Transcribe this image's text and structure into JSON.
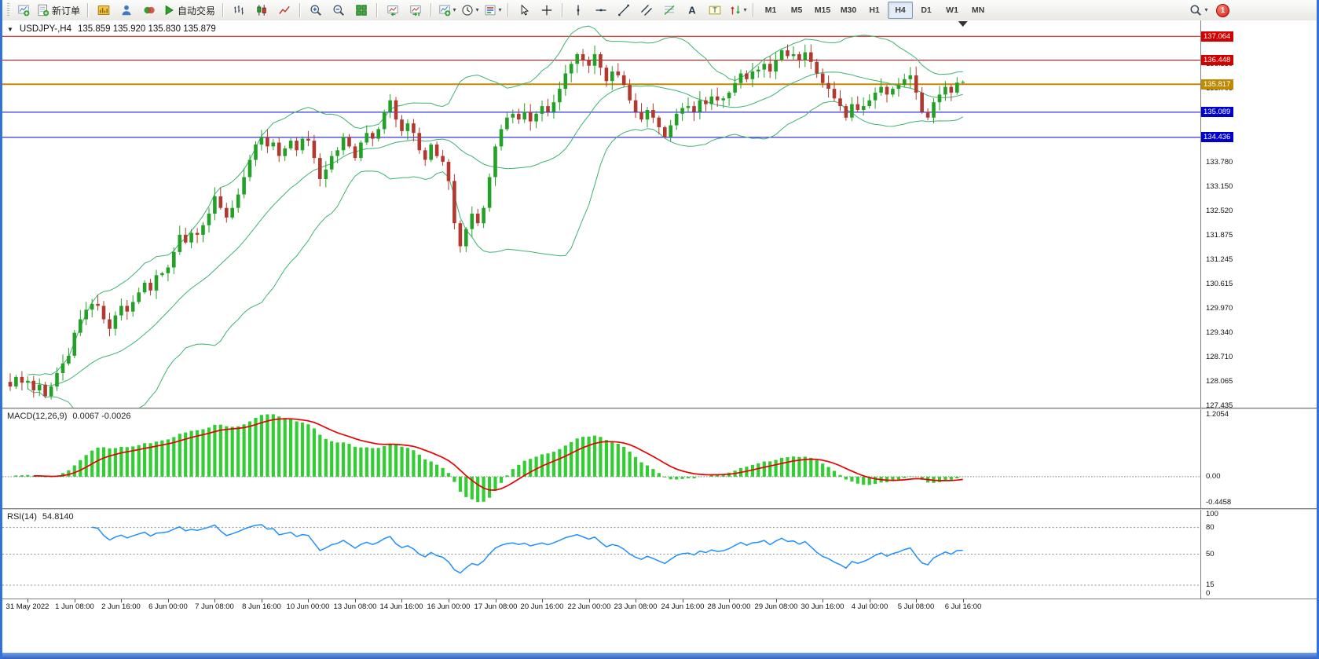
{
  "toolbar": {
    "groups": [
      {
        "items": [
          {
            "name": "new-chart",
            "icon": "indicators"
          },
          {
            "name": "new-order",
            "icon": "order-ticket",
            "label": "新订单"
          }
        ]
      },
      {
        "items": [
          {
            "name": "market-watch",
            "icon": "market-watch"
          },
          {
            "name": "data-window",
            "icon": "data-window"
          },
          {
            "name": "terminal",
            "icon": "terminal"
          },
          {
            "name": "autotrading",
            "icon": "play",
            "label": "自动交易"
          }
        ]
      },
      {
        "items": [
          {
            "name": "bar-chart-mode",
            "icon": "bar-chart"
          },
          {
            "name": "candlestick-mode",
            "icon": "candle-chart"
          },
          {
            "name": "line-chart-mode",
            "icon": "line-chart"
          }
        ]
      },
      {
        "items": [
          {
            "name": "zoom-in",
            "icon": "zoom-in"
          },
          {
            "name": "zoom-out",
            "icon": "zoom-out"
          },
          {
            "name": "tile-windows",
            "icon": "tile-windows"
          }
        ]
      },
      {
        "items": [
          {
            "name": "auto-scroll",
            "icon": "auto-scroll"
          },
          {
            "name": "chart-shift",
            "icon": "chart-shift"
          }
        ]
      },
      {
        "items": [
          {
            "name": "indicators-list",
            "icon": "indicators",
            "dropdown": true
          },
          {
            "name": "periods",
            "icon": "clock",
            "dropdown": true
          },
          {
            "name": "templates",
            "icon": "templates",
            "dropdown": true
          }
        ]
      },
      {
        "items": [
          {
            "name": "cursor",
            "icon": "cursor"
          },
          {
            "name": "crosshair",
            "icon": "crosshair"
          }
        ]
      },
      {
        "items": [
          {
            "name": "vertical-line",
            "icon": "vline"
          },
          {
            "name": "horizontal-line",
            "icon": "hline"
          },
          {
            "name": "trendline",
            "icon": "trendline"
          },
          {
            "name": "equidistant-channel",
            "icon": "channel"
          },
          {
            "name": "fibonacci",
            "icon": "fibonacci"
          },
          {
            "name": "text",
            "icon": "text"
          },
          {
            "name": "text-label",
            "icon": "text-label"
          },
          {
            "name": "arrows",
            "icon": "arrows",
            "dropdown": true
          }
        ]
      }
    ],
    "timeframes": [
      "M1",
      "M5",
      "M15",
      "M30",
      "H1",
      "H4",
      "D1",
      "W1",
      "MN"
    ],
    "active_timeframe": "H4",
    "notification_count": "1"
  },
  "main_chart": {
    "symbol_period": "USDJPY-,H4",
    "ohlc_text": "135.859 135.920 135.830 135.879",
    "axis_ticks": [
      {
        "price": 136.96,
        "text": "136.960"
      },
      {
        "price": 136.33,
        "text": "136.330"
      },
      {
        "price": 135.705,
        "text": "135.705"
      },
      {
        "price": 133.78,
        "text": "133.780"
      },
      {
        "price": 133.15,
        "text": "133.150"
      },
      {
        "price": 132.52,
        "text": "132.520"
      },
      {
        "price": 131.875,
        "text": "131.875"
      },
      {
        "price": 131.245,
        "text": "131.245"
      },
      {
        "price": 130.615,
        "text": "130.615"
      },
      {
        "price": 129.97,
        "text": "129.970"
      },
      {
        "price": 129.34,
        "text": "129.340"
      },
      {
        "price": 128.71,
        "text": "128.710"
      },
      {
        "price": 128.065,
        "text": "128.065"
      },
      {
        "price": 127.435,
        "text": "127.435"
      }
    ],
    "levels": [
      {
        "price": 137.064,
        "text": "137.064",
        "color": "#d40000",
        "width": 1
      },
      {
        "price": 136.448,
        "text": "136.448",
        "color": "#d40000",
        "width": 1
      },
      {
        "price": 135.817,
        "text": "135.817",
        "color": "#bf8a00",
        "width": 2
      },
      {
        "price": 135.089,
        "text": "135.089",
        "color": "#0000cd",
        "width": 1
      },
      {
        "price": 134.436,
        "text": "134.436",
        "color": "#0000cd",
        "width": 1
      }
    ]
  },
  "macd": {
    "label": "MACD(12,26,9)",
    "values_text": "0.0067 -0.0026",
    "axis_top": "1.2054",
    "axis_zero": "0.00",
    "axis_bottom": "-0.4458",
    "histogram_color": "#32cd32",
    "signal_color": "#e80000",
    "params": {
      "fast": 12,
      "slow": 26,
      "signal": 9
    }
  },
  "rsi": {
    "label": "RSI(14)",
    "value_text": "54.8140",
    "period": 14,
    "line_color": "#1e90ff",
    "levels": [
      80,
      50,
      15
    ],
    "axis_labels": [
      {
        "value": 100,
        "text": "100"
      },
      {
        "value": 80,
        "text": "80"
      },
      {
        "value": 50,
        "text": "50"
      },
      {
        "value": 15,
        "text": "15"
      },
      {
        "value": 0,
        "text": "0"
      }
    ]
  },
  "time_axis": {
    "first_label_bar": 3,
    "label_every_bars": 8,
    "labels": [
      "31 May 2022",
      "1 Jun 08:00",
      "2 Jun 16:00",
      "6 Jun 00:00",
      "7 Jun 08:00",
      "8 Jun 16:00",
      "10 Jun 00:00",
      "13 Jun 08:00",
      "14 Jun 16:00",
      "16 Jun 00:00",
      "17 Jun 08:00",
      "20 Jun 16:00",
      "22 Jun 00:00",
      "23 Jun 08:00",
      "24 Jun 16:00",
      "28 Jun 00:00",
      "29 Jun 08:00",
      "30 Jun 16:00",
      "4 Jul 00:00",
      "5 Jul 08:00",
      "6 Jul 16:00"
    ]
  },
  "chart_data": {
    "type": "candlestick",
    "symbol": "USDJPY-",
    "timeframe": "H4",
    "title": "USDJPY-,H4 135.859 135.920 135.830 135.879",
    "current_ohlc": {
      "open": 135.859,
      "high": 135.92,
      "low": 135.83,
      "close": 135.879
    },
    "ylim": [
      127.4,
      137.48
    ],
    "bollinger": {
      "period": 20,
      "deviation": 2,
      "color": "#3cb371"
    },
    "candle_colors": {
      "bull": "#23a127",
      "bear": "#b2392f"
    },
    "closes": [
      127.95,
      128.2,
      128.05,
      128.1,
      127.85,
      128.0,
      127.7,
      127.95,
      128.3,
      128.55,
      128.75,
      129.35,
      129.7,
      129.95,
      130.1,
      130.05,
      129.7,
      129.45,
      129.8,
      130.05,
      129.9,
      130.15,
      130.4,
      130.65,
      130.45,
      130.85,
      130.9,
      131.05,
      131.45,
      131.9,
      131.7,
      131.95,
      131.9,
      132.15,
      132.45,
      132.9,
      132.6,
      132.35,
      132.6,
      132.95,
      133.4,
      133.85,
      134.25,
      134.45,
      134.2,
      134.3,
      133.95,
      134.15,
      134.35,
      134.1,
      134.4,
      134.35,
      133.9,
      133.35,
      133.6,
      133.95,
      134.1,
      134.45,
      134.2,
      133.9,
      134.3,
      134.55,
      134.4,
      134.65,
      135.1,
      135.4,
      134.9,
      134.6,
      134.8,
      134.55,
      134.1,
      133.85,
      134.25,
      133.95,
      133.8,
      133.3,
      132.2,
      131.6,
      132.05,
      132.45,
      132.2,
      132.6,
      133.4,
      134.2,
      134.65,
      134.95,
      135.05,
      134.9,
      135.1,
      134.85,
      135.05,
      135.25,
      135.1,
      135.35,
      135.7,
      136.1,
      136.35,
      136.6,
      136.45,
      136.3,
      136.6,
      136.25,
      135.9,
      136.15,
      136.05,
      135.8,
      135.4,
      135.1,
      134.9,
      135.15,
      134.95,
      134.7,
      134.45,
      134.75,
      135.05,
      135.2,
      135.25,
      135.1,
      135.4,
      135.3,
      135.5,
      135.4,
      135.45,
      135.6,
      135.85,
      136.1,
      135.95,
      136.15,
      136.2,
      136.35,
      136.15,
      136.45,
      136.7,
      136.55,
      136.6,
      136.45,
      136.65,
      136.4,
      136.1,
      135.85,
      135.7,
      135.45,
      135.25,
      134.95,
      135.3,
      135.15,
      135.25,
      135.4,
      135.6,
      135.75,
      135.55,
      135.7,
      135.8,
      135.95,
      136.05,
      135.6,
      135.1,
      134.95,
      135.35,
      135.55,
      135.75,
      135.6,
      135.86,
      135.879
    ]
  }
}
